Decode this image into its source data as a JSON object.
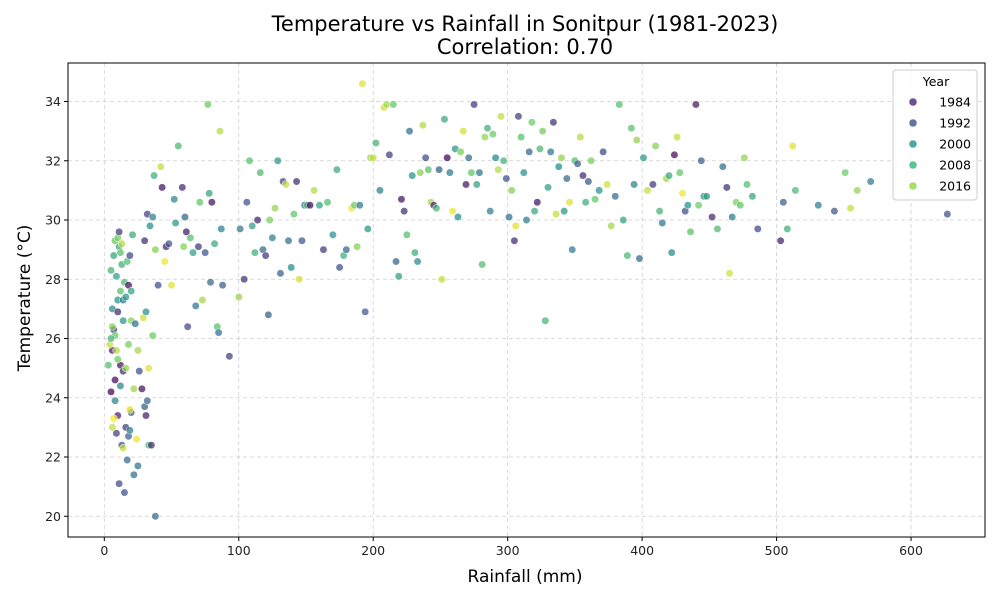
{
  "chart_data": {
    "type": "scatter",
    "title": "Temperature vs Rainfall in Sonitpur (1981-2023)",
    "subtitle": "Correlation: 0.70",
    "xlabel": "Rainfall (mm)",
    "ylabel": "Temperature (°C)",
    "xlim": [
      -27,
      655
    ],
    "ylim": [
      19.3,
      35.3
    ],
    "xticks": [
      0,
      100,
      200,
      300,
      400,
      500,
      600
    ],
    "yticks": [
      20,
      22,
      24,
      26,
      28,
      30,
      32,
      34
    ],
    "grid": true,
    "colormap": "viridis",
    "color_range": [
      1981,
      2023
    ],
    "legend": {
      "title": "Year",
      "placement": "top-right",
      "entries": [
        {
          "label": "1984",
          "color": "#482475"
        },
        {
          "label": "1992",
          "color": "#3b528b"
        },
        {
          "label": "2000",
          "color": "#21918c"
        },
        {
          "label": "2008",
          "color": "#35b779"
        },
        {
          "label": "2016",
          "color": "#90d743"
        }
      ]
    },
    "points": [
      [
        5,
        24.2,
        1981
      ],
      [
        8,
        24.6,
        1982
      ],
      [
        12,
        25.1,
        1983
      ],
      [
        6,
        25.6,
        1984
      ],
      [
        10,
        23.4,
        1985
      ],
      [
        14,
        24.9,
        1986
      ],
      [
        7,
        26.3,
        1987
      ],
      [
        16,
        23.0,
        1988
      ],
      [
        9,
        22.8,
        1989
      ],
      [
        11,
        21.1,
        1990
      ],
      [
        15,
        20.8,
        1991
      ],
      [
        13,
        22.4,
        1992
      ],
      [
        18,
        22.7,
        1993
      ],
      [
        20,
        23.5,
        1994
      ],
      [
        17,
        21.9,
        1995
      ],
      [
        22,
        21.4,
        1996
      ],
      [
        25,
        21.7,
        1997
      ],
      [
        19,
        22.9,
        1998
      ],
      [
        8,
        23.9,
        1999
      ],
      [
        12,
        24.4,
        2000
      ],
      [
        6,
        27.0,
        2001
      ],
      [
        10,
        27.3,
        2002
      ],
      [
        14,
        26.6,
        2003
      ],
      [
        9,
        28.1,
        2004
      ],
      [
        7,
        28.8,
        2005
      ],
      [
        11,
        29.1,
        2006
      ],
      [
        13,
        28.5,
        2007
      ],
      [
        5,
        28.3,
        2008
      ],
      [
        15,
        27.9,
        2009
      ],
      [
        17,
        28.6,
        2010
      ],
      [
        12,
        27.6,
        2011
      ],
      [
        8,
        26.1,
        2012
      ],
      [
        10,
        25.3,
        2013
      ],
      [
        18,
        25.8,
        2014
      ],
      [
        20,
        26.6,
        2015
      ],
      [
        16,
        25.0,
        2016
      ],
      [
        22,
        24.3,
        2017
      ],
      [
        9,
        25.6,
        2018
      ],
      [
        6,
        23.0,
        2019
      ],
      [
        14,
        22.3,
        2020
      ],
      [
        19,
        23.6,
        2021
      ],
      [
        24,
        22.6,
        2022
      ],
      [
        7,
        23.3,
        2023
      ],
      [
        4,
        25.8,
        2019
      ],
      [
        6,
        26.4,
        2015
      ],
      [
        3,
        25.1,
        2010
      ],
      [
        5,
        26.0,
        2008
      ],
      [
        8,
        29.3,
        2012
      ],
      [
        10,
        29.4,
        2014
      ],
      [
        11,
        29.6,
        1988
      ],
      [
        13,
        29.2,
        2018
      ],
      [
        12,
        28.9,
        2011
      ],
      [
        10,
        26.9,
        1986
      ],
      [
        14,
        27.3,
        1997
      ],
      [
        16,
        27.4,
        2003
      ],
      [
        18,
        27.8,
        1982
      ],
      [
        20,
        27.6,
        2005
      ],
      [
        19,
        28.8,
        1990
      ],
      [
        21,
        29.5,
        2006
      ],
      [
        23,
        26.5,
        1996
      ],
      [
        25,
        25.6,
        2017
      ],
      [
        26,
        24.9,
        1991
      ],
      [
        28,
        24.3,
        1983
      ],
      [
        30,
        23.7,
        1993
      ],
      [
        31,
        23.4,
        1985
      ],
      [
        32,
        23.9,
        1994
      ],
      [
        33,
        22.4,
        2009
      ],
      [
        35,
        22.4,
        1987
      ],
      [
        38,
        20.0,
        1995
      ],
      [
        29,
        26.7,
        2020
      ],
      [
        31,
        26.9,
        2002
      ],
      [
        33,
        25.0,
        2021
      ],
      [
        36,
        26.1,
        2013
      ],
      [
        30,
        29.3,
        1986
      ],
      [
        32,
        30.2,
        1989
      ],
      [
        34,
        29.8,
        2002
      ],
      [
        36,
        30.1,
        1999
      ],
      [
        37,
        31.5,
        2007
      ],
      [
        38,
        29.0,
        2015
      ],
      [
        40,
        27.8,
        1991
      ],
      [
        42,
        31.8,
        2019
      ],
      [
        43,
        31.1,
        1983
      ],
      [
        45,
        28.6,
        2022
      ],
      [
        46,
        29.1,
        1985
      ],
      [
        48,
        29.2,
        1992
      ],
      [
        50,
        27.8,
        2021
      ],
      [
        52,
        30.7,
        2000
      ],
      [
        53,
        29.9,
        2003
      ],
      [
        55,
        32.5,
        2009
      ],
      [
        58,
        31.1,
        1986
      ],
      [
        59,
        29.1,
        2015
      ],
      [
        60,
        30.1,
        1994
      ],
      [
        61,
        29.6,
        1984
      ],
      [
        62,
        26.4,
        1990
      ],
      [
        64,
        29.4,
        2010
      ],
      [
        66,
        28.9,
        2004
      ],
      [
        68,
        27.1,
        1997
      ],
      [
        70,
        29.1,
        1988
      ],
      [
        71,
        30.6,
        2012
      ],
      [
        73,
        27.3,
        2017
      ],
      [
        75,
        28.9,
        1992
      ],
      [
        77,
        33.9,
        2013
      ],
      [
        78,
        30.9,
        2005
      ],
      [
        79,
        27.9,
        1995
      ],
      [
        80,
        30.6,
        1983
      ],
      [
        82,
        29.2,
        2006
      ],
      [
        84,
        26.4,
        2011
      ],
      [
        85,
        26.2,
        1996
      ],
      [
        86,
        33.0,
        2018
      ],
      [
        87,
        29.7,
        1999
      ],
      [
        88,
        27.8,
        1993
      ],
      [
        93,
        25.4,
        1989
      ],
      [
        100,
        27.4,
        2016
      ],
      [
        101,
        29.7,
        1998
      ],
      [
        104,
        28.0,
        1987
      ],
      [
        106,
        30.6,
        1991
      ],
      [
        108,
        32.0,
        2011
      ],
      [
        110,
        29.8,
        2004
      ],
      [
        112,
        28.9,
        2007
      ],
      [
        114,
        30.0,
        1985
      ],
      [
        116,
        31.6,
        2009
      ],
      [
        118,
        29.0,
        1995
      ],
      [
        120,
        28.8,
        1988
      ],
      [
        122,
        26.8,
        1993
      ],
      [
        123,
        30.0,
        2014
      ],
      [
        125,
        29.4,
        1999
      ],
      [
        127,
        30.4,
        2016
      ],
      [
        129,
        32.0,
        2003
      ],
      [
        131,
        28.2,
        1994
      ],
      [
        133,
        31.3,
        1990
      ],
      [
        135,
        31.2,
        2019
      ],
      [
        137,
        29.3,
        1996
      ],
      [
        139,
        28.4,
        2001
      ],
      [
        141,
        30.2,
        2012
      ],
      [
        143,
        31.3,
        1986
      ],
      [
        145,
        28.0,
        2020
      ],
      [
        147,
        29.3,
        1992
      ],
      [
        149,
        30.5,
        1998
      ],
      [
        151,
        30.5,
        2008
      ],
      [
        153,
        30.5,
        1983
      ],
      [
        156,
        31.0,
        2018
      ],
      [
        160,
        30.5,
        2005
      ],
      [
        163,
        29.0,
        1988
      ],
      [
        166,
        30.6,
        2010
      ],
      [
        170,
        29.5,
        2002
      ],
      [
        173,
        31.7,
        2006
      ],
      [
        175,
        28.4,
        1991
      ],
      [
        178,
        28.8,
        2007
      ],
      [
        180,
        29.0,
        1994
      ],
      [
        184,
        30.4,
        2022
      ],
      [
        186,
        30.5,
        2013
      ],
      [
        188,
        29.1,
        2015
      ],
      [
        190,
        30.5,
        1997
      ],
      [
        192,
        34.6,
        2021
      ],
      [
        194,
        26.9,
        1992
      ],
      [
        196,
        29.7,
        2003
      ],
      [
        198,
        32.1,
        2016
      ],
      [
        200,
        32.1,
        2019
      ],
      [
        202,
        32.6,
        2008
      ],
      [
        205,
        31.0,
        1999
      ],
      [
        208,
        33.8,
        2020
      ],
      [
        210,
        33.9,
        2017
      ],
      [
        212,
        32.2,
        1989
      ],
      [
        215,
        33.9,
        2012
      ],
      [
        217,
        28.6,
        1994
      ],
      [
        219,
        28.1,
        2004
      ],
      [
        221,
        30.7,
        1983
      ],
      [
        223,
        30.3,
        1987
      ],
      [
        225,
        29.5,
        2010
      ],
      [
        227,
        33.0,
        1996
      ],
      [
        229,
        31.5,
        2002
      ],
      [
        231,
        28.9,
        2007
      ],
      [
        233,
        28.6,
        2000
      ],
      [
        235,
        31.6,
        2015
      ],
      [
        237,
        33.2,
        2018
      ],
      [
        239,
        32.1,
        1990
      ],
      [
        241,
        31.7,
        2011
      ],
      [
        243,
        30.6,
        2017
      ],
      [
        245,
        30.5,
        1985
      ],
      [
        247,
        30.4,
        2009
      ],
      [
        249,
        31.7,
        1993
      ],
      [
        251,
        28.0,
        2019
      ],
      [
        253,
        33.4,
        2006
      ],
      [
        255,
        32.1,
        1981
      ],
      [
        257,
        31.6,
        1998
      ],
      [
        259,
        30.3,
        2022
      ],
      [
        261,
        32.4,
        2003
      ],
      [
        263,
        30.1,
        2001
      ],
      [
        265,
        32.3,
        2014
      ],
      [
        267,
        33.0,
        2020
      ],
      [
        269,
        31.2,
        1984
      ],
      [
        271,
        32.1,
        1995
      ],
      [
        273,
        31.6,
        2012
      ],
      [
        275,
        33.9,
        1988
      ],
      [
        277,
        31.2,
        2005
      ],
      [
        279,
        31.6,
        1997
      ],
      [
        281,
        28.5,
        2010
      ],
      [
        283,
        32.8,
        2016
      ],
      [
        285,
        33.1,
        2007
      ],
      [
        287,
        30.3,
        1999
      ],
      [
        289,
        32.9,
        2013
      ],
      [
        291,
        32.1,
        2000
      ],
      [
        293,
        31.7,
        2018
      ],
      [
        295,
        33.5,
        2019
      ],
      [
        297,
        32.0,
        2008
      ],
      [
        299,
        31.4,
        1991
      ],
      [
        301,
        30.1,
        1996
      ],
      [
        303,
        31.0,
        2015
      ],
      [
        305,
        29.3,
        1986
      ],
      [
        306,
        29.8,
        2021
      ],
      [
        308,
        33.5,
        1989
      ],
      [
        310,
        32.8,
        2011
      ],
      [
        312,
        31.6,
        2002
      ],
      [
        314,
        30.0,
        1998
      ],
      [
        316,
        32.3,
        1994
      ],
      [
        318,
        33.3,
        2013
      ],
      [
        320,
        30.3,
        2006
      ],
      [
        322,
        30.6,
        1983
      ],
      [
        324,
        32.4,
        2009
      ],
      [
        326,
        33.0,
        2014
      ],
      [
        328,
        26.6,
        2008
      ],
      [
        330,
        31.1,
        2004
      ],
      [
        332,
        32.3,
        1997
      ],
      [
        334,
        33.3,
        1987
      ],
      [
        336,
        30.2,
        2019
      ],
      [
        338,
        31.8,
        2001
      ],
      [
        340,
        32.1,
        2016
      ],
      [
        342,
        30.3,
        2003
      ],
      [
        344,
        31.4,
        1995
      ],
      [
        346,
        30.6,
        2021
      ],
      [
        348,
        29.0,
        1998
      ],
      [
        350,
        32.0,
        2010
      ],
      [
        352,
        31.9,
        1993
      ],
      [
        354,
        32.8,
        2018
      ],
      [
        356,
        31.5,
        1986
      ],
      [
        358,
        30.6,
        2007
      ],
      [
        360,
        31.3,
        1992
      ],
      [
        362,
        32.0,
        2014
      ],
      [
        365,
        30.7,
        2012
      ],
      [
        368,
        31.0,
        2002
      ],
      [
        371,
        32.3,
        1990
      ],
      [
        374,
        31.2,
        2020
      ],
      [
        377,
        29.8,
        2017
      ],
      [
        380,
        30.8,
        1996
      ],
      [
        383,
        33.9,
        2010
      ],
      [
        386,
        30.0,
        2005
      ],
      [
        389,
        28.8,
        2009
      ],
      [
        392,
        33.1,
        2011
      ],
      [
        394,
        31.2,
        1999
      ],
      [
        396,
        32.7,
        2016
      ],
      [
        398,
        28.7,
        1995
      ],
      [
        401,
        32.1,
        2003
      ],
      [
        404,
        31.0,
        2019
      ],
      [
        408,
        31.2,
        1988
      ],
      [
        410,
        32.5,
        2015
      ],
      [
        413,
        30.3,
        2008
      ],
      [
        415,
        29.9,
        1997
      ],
      [
        418,
        31.4,
        2017
      ],
      [
        420,
        31.5,
        2006
      ],
      [
        422,
        28.9,
        2001
      ],
      [
        424,
        32.2,
        1982
      ],
      [
        426,
        32.8,
        2019
      ],
      [
        428,
        31.6,
        2012
      ],
      [
        430,
        30.9,
        2022
      ],
      [
        432,
        30.3,
        1991
      ],
      [
        434,
        30.5,
        2002
      ],
      [
        436,
        29.6,
        2011
      ],
      [
        440,
        33.9,
        1984
      ],
      [
        442,
        30.5,
        2013
      ],
      [
        444,
        32.0,
        1993
      ],
      [
        446,
        30.8,
        2000
      ],
      [
        448,
        30.8,
        2004
      ],
      [
        452,
        30.1,
        1986
      ],
      [
        456,
        29.7,
        2009
      ],
      [
        460,
        31.8,
        1996
      ],
      [
        463,
        31.1,
        1987
      ],
      [
        465,
        28.2,
        2020
      ],
      [
        467,
        30.1,
        1998
      ],
      [
        470,
        30.6,
        2014
      ],
      [
        473,
        30.5,
        2012
      ],
      [
        476,
        32.1,
        2016
      ],
      [
        478,
        31.2,
        2010
      ],
      [
        482,
        30.8,
        2005
      ],
      [
        486,
        29.7,
        1990
      ],
      [
        503,
        29.3,
        1985
      ],
      [
        505,
        30.6,
        1993
      ],
      [
        508,
        29.7,
        2007
      ],
      [
        512,
        32.5,
        2021
      ],
      [
        514,
        31.0,
        2009
      ],
      [
        531,
        30.5,
        1999
      ],
      [
        543,
        30.3,
        1992
      ],
      [
        551,
        31.6,
        2013
      ],
      [
        555,
        30.4,
        2019
      ],
      [
        560,
        31.0,
        2016
      ],
      [
        570,
        31.3,
        1998
      ],
      [
        627,
        30.2,
        1991
      ]
    ]
  }
}
